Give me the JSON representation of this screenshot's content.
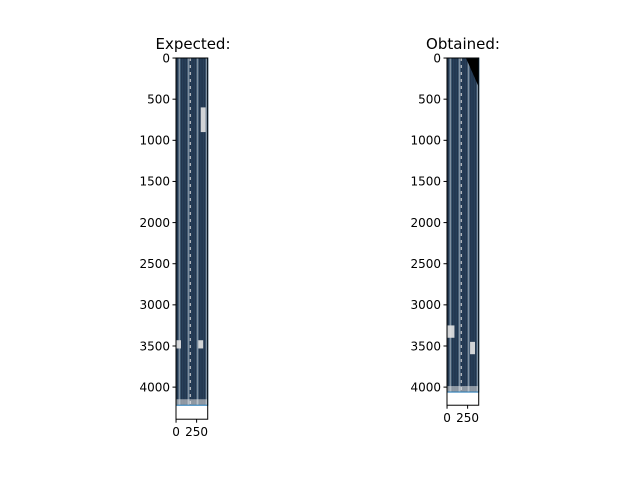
{
  "chart_data": [
    {
      "type": "heatmap",
      "title": "Expected:",
      "xlabel": "",
      "ylabel": "",
      "x_ticks": [
        0,
        250
      ],
      "y_ticks": [
        0,
        500,
        1000,
        1500,
        2000,
        2500,
        3000,
        3500,
        4000
      ],
      "xlim": [
        -0.5,
        385
      ],
      "ylim": [
        4390,
        -0.5
      ],
      "image_extent": {
        "width": 385,
        "height": 4220
      },
      "image_description_colors": {
        "dark": "#1f2f45",
        "mid": "#2d4a66",
        "light": "#e6e6e6",
        "border": "#1f77b4"
      },
      "bright_patches": [
        {
          "x": [
            0,
            60
          ],
          "y": [
            3430,
            3530
          ]
        },
        {
          "x": [
            270,
            330
          ],
          "y": [
            3430,
            3530
          ]
        },
        {
          "x": [
            300,
            360
          ],
          "y": [
            600,
            900
          ]
        }
      ],
      "grid": false
    },
    {
      "type": "heatmap",
      "title": "Obtained:",
      "xlabel": "",
      "ylabel": "",
      "x_ticks": [
        0,
        250
      ],
      "y_ticks": [
        0,
        500,
        1000,
        1500,
        2000,
        2500,
        3000,
        3500,
        4000
      ],
      "xlim": [
        -0.5,
        385
      ],
      "ylim": [
        4220,
        -0.5
      ],
      "image_extent": {
        "width": 385,
        "height": 4060
      },
      "image_description_colors": {
        "dark": "#1f2f45",
        "mid": "#2d4a66",
        "light": "#e6e6e6",
        "border": "#1f77b4"
      },
      "bright_patches": [
        {
          "x": [
            0,
            90
          ],
          "y": [
            3250,
            3400
          ]
        },
        {
          "x": [
            280,
            340
          ],
          "y": [
            3450,
            3600
          ]
        }
      ],
      "dark_wedge": {
        "x": [
          230,
          385
        ],
        "y": [
          0,
          350
        ]
      },
      "grid": false
    }
  ]
}
